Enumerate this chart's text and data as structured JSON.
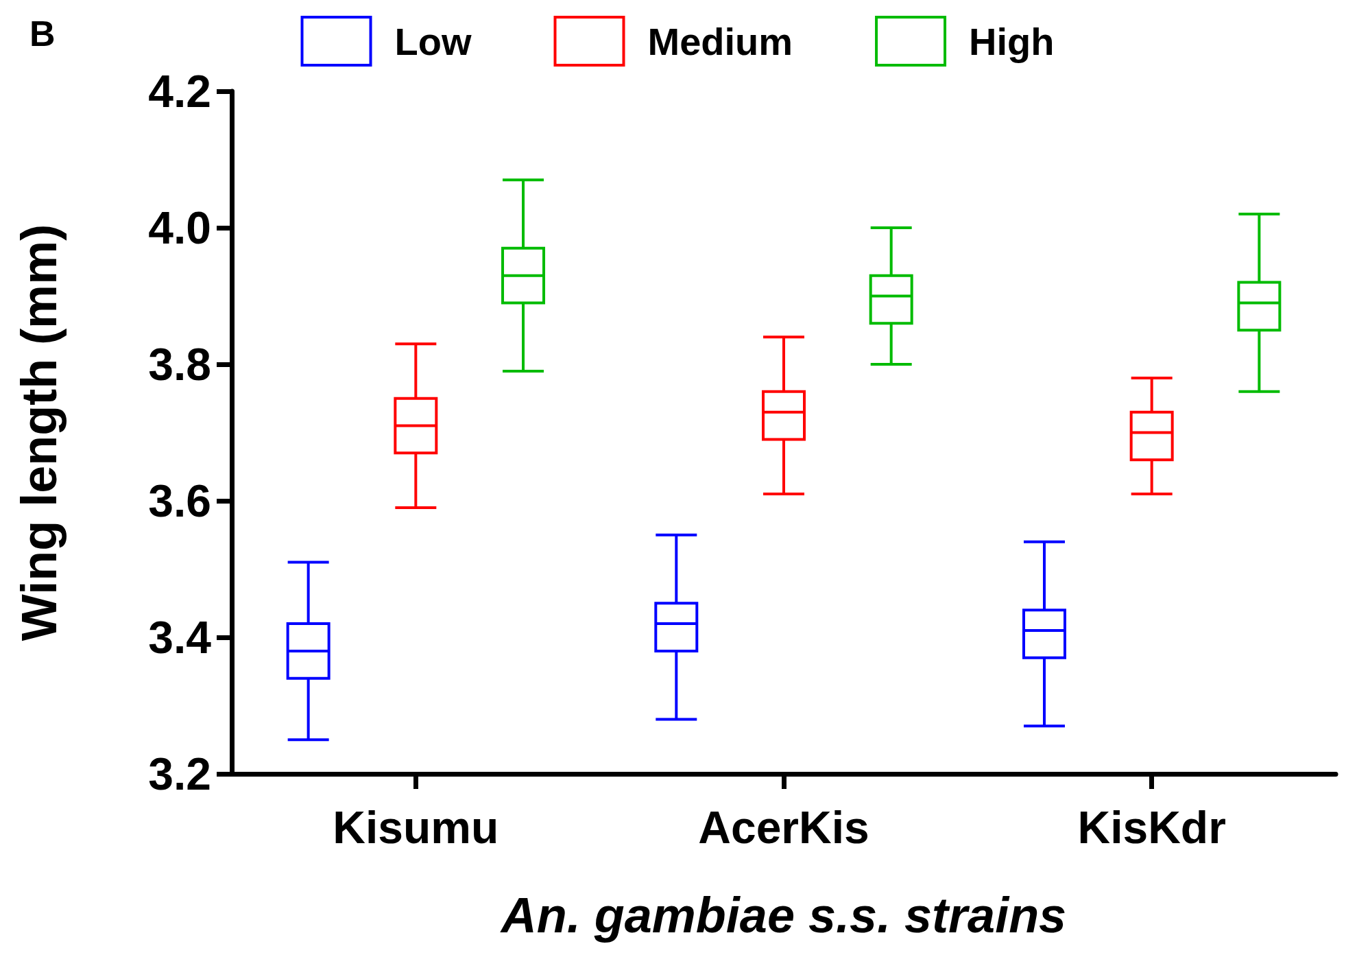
{
  "chart_data": {
    "type": "box",
    "title": "B",
    "xlabel": "An. gambiae s.s. strains",
    "ylabel": "Wing length (mm)",
    "categories": [
      "Kisumu",
      "AcerKis",
      "KisKdr"
    ],
    "ylim": [
      3.2,
      4.2
    ],
    "yticks": [
      {
        "value": 3.2,
        "label": "3.2"
      },
      {
        "value": 3.4,
        "label": "3.4"
      },
      {
        "value": 3.6,
        "label": "3.6"
      },
      {
        "value": 3.8,
        "label": "3.8"
      },
      {
        "value": 4,
        "label": "4.0"
      },
      {
        "value": 4.2,
        "label": "4.2"
      }
    ],
    "grid": false,
    "legend": "top",
    "series": [
      {
        "name": "Low",
        "color": "#0000ff",
        "boxes": [
          {
            "low": 3.25,
            "q1": 3.34,
            "median": 3.38,
            "q3": 3.42,
            "high": 3.51
          },
          {
            "low": 3.28,
            "q1": 3.38,
            "median": 3.42,
            "q3": 3.45,
            "high": 3.55
          },
          {
            "low": 3.27,
            "q1": 3.37,
            "median": 3.41,
            "q3": 3.44,
            "high": 3.54
          }
        ]
      },
      {
        "name": "Medium",
        "color": "#ff0000",
        "boxes": [
          {
            "low": 3.59,
            "q1": 3.67,
            "median": 3.71,
            "q3": 3.75,
            "high": 3.83
          },
          {
            "low": 3.61,
            "q1": 3.69,
            "median": 3.73,
            "q3": 3.76,
            "high": 3.84
          },
          {
            "low": 3.61,
            "q1": 3.66,
            "median": 3.7,
            "q3": 3.73,
            "high": 3.78
          }
        ]
      },
      {
        "name": "High",
        "color": "#00bb00",
        "boxes": [
          {
            "low": 3.79,
            "q1": 3.89,
            "median": 3.93,
            "q3": 3.97,
            "high": 4.07
          },
          {
            "low": 3.8,
            "q1": 3.86,
            "median": 3.9,
            "q3": 3.93,
            "high": 4
          },
          {
            "low": 3.76,
            "q1": 3.85,
            "median": 3.89,
            "q3": 3.92,
            "high": 4.02
          }
        ]
      }
    ]
  }
}
